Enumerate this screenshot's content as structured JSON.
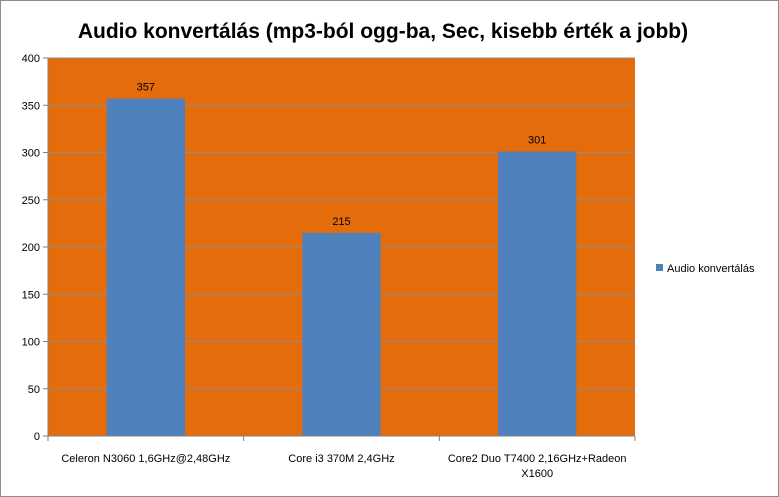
{
  "chart_data": {
    "type": "bar",
    "title": "Audio konvertálás (mp3-ból ogg-ba, Sec, kisebb érték a jobb)",
    "categories": [
      [
        "Celeron N3060 1,6GHz@2,48GHz"
      ],
      [
        "Core i3 370M 2,4GHz"
      ],
      [
        "Core2 Duo T7400 2,16GHz+Radeon",
        "X1600"
      ]
    ],
    "series": [
      {
        "name": "Audio konvertálás",
        "values": [
          357,
          215,
          301
        ],
        "color": "#4f81bd"
      }
    ],
    "data_labels": [
      "357",
      "215",
      "301"
    ],
    "ylim": [
      0,
      400
    ],
    "yticks": [
      0,
      50,
      100,
      150,
      200,
      250,
      300,
      350,
      400
    ],
    "ytick_labels": [
      "0",
      "50",
      "100",
      "150",
      "200",
      "250",
      "300",
      "350",
      "400"
    ],
    "grid": true,
    "legend": "right",
    "colors": {
      "plot_background": "#e46c0a",
      "gridline": "#8c8c8c",
      "chart_background": "#ffffff"
    }
  }
}
